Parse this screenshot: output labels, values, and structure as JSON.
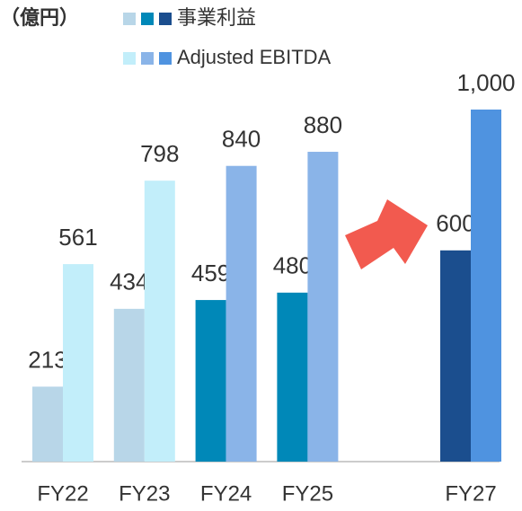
{
  "chart_data": {
    "type": "bar",
    "unit": "（億円）",
    "categories": [
      "FY22",
      "FY23",
      "FY24",
      "FY25",
      null,
      "FY27"
    ],
    "series": [
      {
        "name": "事業利益",
        "colors": [
          "#b8d6e8",
          "#b8d6e8",
          "#0088b8",
          "#0088b8",
          null,
          "#1b4e8e"
        ],
        "values": [
          213,
          434,
          459,
          480,
          null,
          600
        ]
      },
      {
        "name": "Adjusted EBITDA",
        "colors": [
          "#c2eefa",
          "#c2eefa",
          "#8ab4e8",
          "#8ab4e8",
          null,
          "#4f93e0"
        ],
        "values": [
          561,
          798,
          840,
          880,
          null,
          1000
        ],
        "value_labels": [
          "561",
          "798",
          "840",
          "880",
          null,
          "1,000"
        ]
      }
    ],
    "ylim": [
      0,
      1000
    ]
  }
}
